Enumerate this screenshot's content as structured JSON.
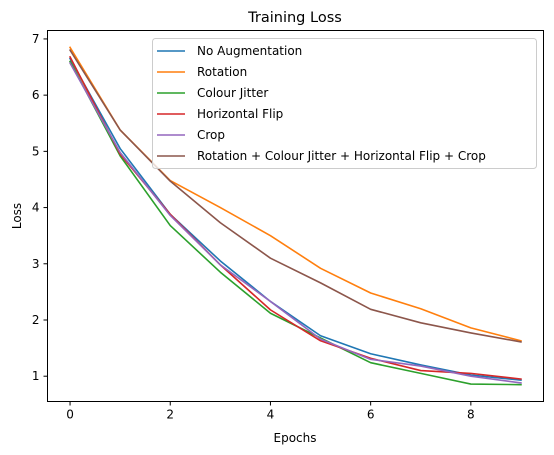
{
  "chart_data": {
    "type": "line",
    "title": "Training Loss",
    "xlabel": "Epochs",
    "ylabel": "Loss",
    "xlim": [
      -0.45,
      9.45
    ],
    "ylim": [
      0.55,
      7.15
    ],
    "xticks": [
      0,
      2,
      4,
      6,
      8
    ],
    "yticks": [
      1,
      2,
      3,
      4,
      5,
      6,
      7
    ],
    "grid": false,
    "legend_position": "top-right",
    "x": [
      0,
      1,
      2,
      3,
      4,
      5,
      6,
      7,
      8,
      9
    ],
    "series": [
      {
        "name": "No Augmentation",
        "color": "#1f77b4",
        "values": [
          6.65,
          5.05,
          3.88,
          3.05,
          2.33,
          1.72,
          1.4,
          1.2,
          1.02,
          0.93
        ]
      },
      {
        "name": "Rotation",
        "color": "#ff7f0e",
        "values": [
          6.85,
          5.38,
          4.48,
          4.0,
          3.5,
          2.92,
          2.48,
          2.2,
          1.86,
          1.63
        ]
      },
      {
        "name": "Colour Jitter",
        "color": "#2ca02c",
        "values": [
          6.6,
          4.92,
          3.68,
          2.85,
          2.12,
          1.68,
          1.24,
          1.05,
          0.86,
          0.85
        ]
      },
      {
        "name": "Horizontal Flip",
        "color": "#d62728",
        "values": [
          6.68,
          4.95,
          3.88,
          2.98,
          2.18,
          1.63,
          1.32,
          1.1,
          1.05,
          0.95
        ]
      },
      {
        "name": "Crop",
        "color": "#9467bd",
        "values": [
          6.57,
          4.98,
          3.86,
          2.98,
          2.33,
          1.66,
          1.3,
          1.18,
          1.0,
          0.88
        ]
      },
      {
        "name": "Rotation + Colour Jitter + Horizontal Flip + Crop",
        "color": "#8c564b",
        "values": [
          6.8,
          5.38,
          4.47,
          3.73,
          3.1,
          2.66,
          2.19,
          1.95,
          1.77,
          1.61
        ]
      }
    ]
  }
}
